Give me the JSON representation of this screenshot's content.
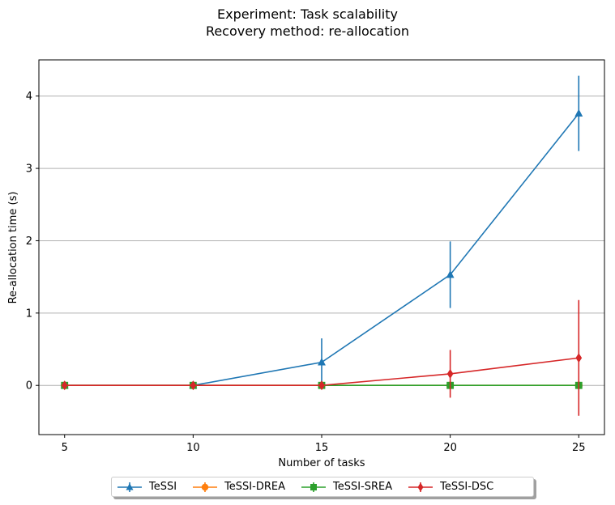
{
  "chart_data": {
    "type": "line",
    "title": "Experiment: Task scalability",
    "subtitle": "Recovery method: re-allocation",
    "xlabel": "Number of tasks",
    "ylabel": "Re-allocation time (s)",
    "x": [
      5,
      10,
      15,
      20,
      25
    ],
    "xticks": [
      "5",
      "10",
      "15",
      "20",
      "25"
    ],
    "yticks": [
      "0",
      "1",
      "2",
      "3",
      "4"
    ],
    "xlim": [
      4,
      26
    ],
    "ylim": [
      -0.68,
      4.5
    ],
    "grid": "y-major",
    "legend_position": "below-center",
    "series": [
      {
        "name": "TeSSI",
        "color": "#1f77b4",
        "marker": "triangle-up",
        "values": [
          0.0,
          0.0,
          0.32,
          1.53,
          3.76
        ],
        "errors": [
          0.0,
          0.0,
          0.33,
          0.46,
          0.52
        ]
      },
      {
        "name": "TeSSI-DREA",
        "color": "#ff7f0e",
        "marker": "circle",
        "values": [
          0.0,
          0.0,
          0.0,
          0.0,
          0.0
        ],
        "errors": [
          0.0,
          0.0,
          0.0,
          0.0,
          0.0
        ]
      },
      {
        "name": "TeSSI-SREA",
        "color": "#2ca02c",
        "marker": "square",
        "values": [
          0.0,
          0.0,
          0.0,
          0.0,
          0.0
        ],
        "errors": [
          0.0,
          0.0,
          0.0,
          0.0,
          0.0
        ]
      },
      {
        "name": "TeSSI-DSC",
        "color": "#d62728",
        "marker": "diamond",
        "values": [
          0.0,
          0.0,
          0.0,
          0.16,
          0.38
        ],
        "errors": [
          0.0,
          0.0,
          0.0,
          0.33,
          0.8
        ]
      }
    ]
  }
}
